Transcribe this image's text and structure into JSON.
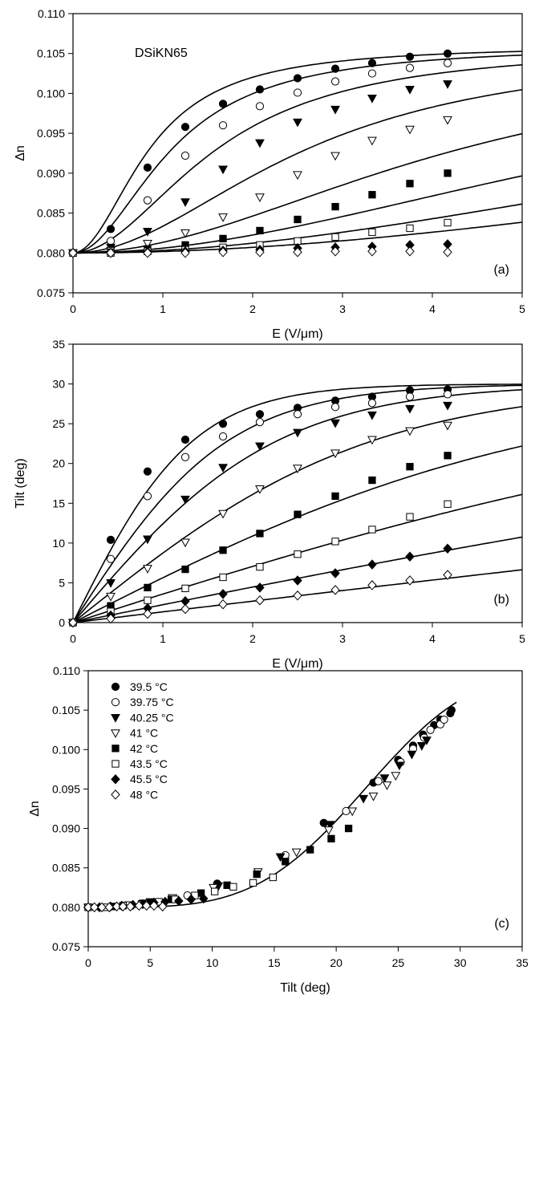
{
  "chart_data": [
    {
      "type": "scatter",
      "panel": "(a)",
      "annotation": "DSiKN65",
      "title": "",
      "xlabel": "E (V/μm)",
      "ylabel": "Δn",
      "xlim": [
        0,
        5
      ],
      "ylim": [
        0.075,
        0.11
      ],
      "xticks": [
        "0",
        "1",
        "2",
        "3",
        "4",
        "5"
      ],
      "yticks": [
        "0.075",
        "0.080",
        "0.085",
        "0.090",
        "0.095",
        "0.100",
        "0.105",
        "0.110"
      ],
      "x": [
        0,
        0.42,
        0.83,
        1.25,
        1.67,
        2.08,
        2.5,
        2.92,
        3.33,
        3.75,
        4.17
      ],
      "series": [
        {
          "name": "39.5 °C",
          "marker": "filled-circle",
          "values": [
            0.08,
            0.083,
            0.0907,
            0.0958,
            0.0987,
            0.1005,
            0.1019,
            0.1031,
            0.1038,
            0.1046,
            0.105
          ]
        },
        {
          "name": "39.75 °C",
          "marker": "open-circle",
          "values": [
            0.08,
            0.0815,
            0.0866,
            0.0922,
            0.096,
            0.0984,
            0.1001,
            0.1015,
            0.1025,
            0.1032,
            0.1038
          ]
        },
        {
          "name": "40.25 °C",
          "marker": "filled-triangle-down",
          "values": [
            0.08,
            0.0807,
            0.0827,
            0.0864,
            0.0905,
            0.0938,
            0.0964,
            0.098,
            0.0994,
            0.1005,
            0.1012
          ]
        },
        {
          "name": "41 °C",
          "marker": "open-triangle-down",
          "values": [
            0.08,
            0.0803,
            0.0812,
            0.0825,
            0.0845,
            0.087,
            0.0898,
            0.0922,
            0.0941,
            0.0955,
            0.0967
          ]
        },
        {
          "name": "42 °C",
          "marker": "filled-square",
          "values": [
            0.08,
            0.0801,
            0.0805,
            0.081,
            0.0818,
            0.0828,
            0.0842,
            0.0858,
            0.0873,
            0.0887,
            0.09
          ]
        },
        {
          "name": "43.5 °C",
          "marker": "open-square",
          "values": [
            0.08,
            0.08,
            0.0802,
            0.0804,
            0.0807,
            0.081,
            0.0815,
            0.082,
            0.0826,
            0.0831,
            0.0838
          ]
        },
        {
          "name": "45.5 °C",
          "marker": "filled-diamond",
          "values": [
            0.08,
            0.08,
            0.0801,
            0.0802,
            0.0803,
            0.0804,
            0.0806,
            0.0807,
            0.0808,
            0.081,
            0.0811
          ]
        },
        {
          "name": "48 °C",
          "marker": "open-diamond",
          "values": [
            0.08,
            0.08,
            0.08,
            0.08,
            0.0801,
            0.0801,
            0.0801,
            0.0802,
            0.0802,
            0.0802,
            0.0801
          ]
        }
      ]
    },
    {
      "type": "scatter",
      "panel": "(b)",
      "title": "",
      "xlabel": "E (V/μm)",
      "ylabel": "Tilt (deg)",
      "xlim": [
        0,
        5
      ],
      "ylim": [
        0,
        35
      ],
      "xticks": [
        "0",
        "1",
        "2",
        "3",
        "4",
        "5"
      ],
      "yticks": [
        "0",
        "5",
        "10",
        "15",
        "20",
        "25",
        "30",
        "35"
      ],
      "x": [
        0,
        0.42,
        0.83,
        1.25,
        1.67,
        2.08,
        2.5,
        2.92,
        3.33,
        3.75,
        4.17
      ],
      "series": [
        {
          "name": "39.5 °C",
          "marker": "filled-circle",
          "values": [
            0,
            10.4,
            19.0,
            23.0,
            25.0,
            26.2,
            27.0,
            27.9,
            28.4,
            29.2,
            29.3
          ]
        },
        {
          "name": "39.75 °C",
          "marker": "open-circle",
          "values": [
            0,
            8.0,
            15.9,
            20.8,
            23.4,
            25.2,
            26.2,
            27.1,
            27.6,
            28.4,
            28.7
          ]
        },
        {
          "name": "40.25 °C",
          "marker": "filled-triangle-down",
          "values": [
            0,
            5.0,
            10.5,
            15.5,
            19.5,
            22.2,
            23.9,
            25.1,
            26.1,
            26.9,
            27.3
          ]
        },
        {
          "name": "41 °C",
          "marker": "open-triangle-down",
          "values": [
            0,
            3.3,
            6.8,
            10.1,
            13.7,
            16.8,
            19.4,
            21.3,
            23.0,
            24.1,
            24.8
          ]
        },
        {
          "name": "42 °C",
          "marker": "filled-square",
          "values": [
            0,
            2.1,
            4.4,
            6.7,
            9.1,
            11.2,
            13.6,
            15.9,
            17.9,
            19.6,
            21.0
          ]
        },
        {
          "name": "43.5 °C",
          "marker": "open-square",
          "values": [
            0,
            1.4,
            2.8,
            4.3,
            5.7,
            7.0,
            8.6,
            10.2,
            11.7,
            13.3,
            14.9
          ]
        },
        {
          "name": "45.5 °C",
          "marker": "filled-diamond",
          "values": [
            0,
            0.9,
            1.8,
            2.7,
            3.6,
            4.4,
            5.3,
            6.2,
            7.3,
            8.3,
            9.3
          ]
        },
        {
          "name": "48 °C",
          "marker": "open-diamond",
          "values": [
            0,
            0.5,
            1.1,
            1.7,
            2.3,
            2.8,
            3.4,
            4.1,
            4.7,
            5.3,
            6.0
          ]
        }
      ]
    },
    {
      "type": "scatter",
      "panel": "(c)",
      "title": "",
      "xlabel": "Tilt (deg)",
      "ylabel": "Δn",
      "xlim": [
        0,
        35
      ],
      "ylim": [
        0.075,
        0.11
      ],
      "xticks": [
        "0",
        "5",
        "10",
        "15",
        "20",
        "25",
        "30",
        "35"
      ],
      "yticks": [
        "0.075",
        "0.080",
        "0.085",
        "0.090",
        "0.095",
        "0.100",
        "0.105",
        "0.110"
      ],
      "legend": {
        "position": "top-left",
        "items": [
          "39.5 °C",
          "39.75 °C",
          "40.25 °C",
          "41 °C",
          "42 °C",
          "43.5 °C",
          "45.5 °C",
          "48 °C"
        ]
      },
      "note": "points are Tilt (b) vs Δn (a) at the same E; solid curve is the fit"
    }
  ]
}
